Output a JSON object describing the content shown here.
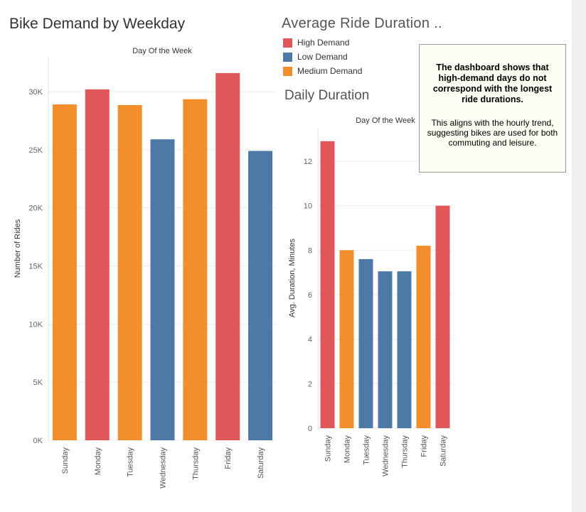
{
  "titles": {
    "demand": "Bike Demand by Weekday",
    "duration_header": "Average Ride Duration ..",
    "duration": "Daily Duration"
  },
  "legend": [
    {
      "label": "High Demand",
      "color": "#e15759"
    },
    {
      "label": "Low Demand",
      "color": "#4e79a7"
    },
    {
      "label": "Medium Demand",
      "color": "#f28e2b"
    }
  ],
  "note": {
    "bold": "The dashboard shows that high-demand days do not correspond with the longest ride durations.",
    "plain": "This aligns with the hourly trend, suggesting bikes are used for both commuting and leisure."
  },
  "chart_data": [
    {
      "type": "bar",
      "title": "Bike Demand by Weekday",
      "column_header": "Day Of the Week",
      "ylabel": "Number of Rides",
      "ylim": [
        0,
        33000
      ],
      "yticks": [
        0,
        5000,
        10000,
        15000,
        20000,
        25000,
        30000
      ],
      "ytick_labels": [
        "0K",
        "5K",
        "10K",
        "15K",
        "20K",
        "25K",
        "30K"
      ],
      "categories": [
        "Sunday",
        "Monday",
        "Tuesday",
        "Wednesday",
        "Thursday",
        "Friday",
        "Saturday"
      ],
      "values": [
        28900,
        30200,
        28850,
        25900,
        29350,
        31600,
        24900
      ],
      "demand": [
        "Medium Demand",
        "High Demand",
        "Medium Demand",
        "Low Demand",
        "Medium Demand",
        "High Demand",
        "Low Demand"
      ],
      "grid": true
    },
    {
      "type": "bar",
      "title": "Daily Duration",
      "column_header": "Day Of the Week",
      "ylabel": "Avg. Duration, Minutes",
      "ylim": [
        0,
        13.5
      ],
      "yticks": [
        0,
        2,
        4,
        6,
        8,
        10,
        12
      ],
      "ytick_labels": [
        "0",
        "2",
        "4",
        "6",
        "8",
        "10",
        "12"
      ],
      "categories": [
        "Sunday",
        "Monday",
        "Tuesday",
        "Wednesday",
        "Thursday",
        "Friday",
        "Saturday"
      ],
      "values": [
        12.9,
        8.0,
        7.6,
        7.05,
        7.05,
        8.2,
        10.0
      ],
      "demand": [
        "High Demand",
        "Medium Demand",
        "Low Demand",
        "Low Demand",
        "Low Demand",
        "Medium Demand",
        "High Demand"
      ],
      "grid": true
    }
  ]
}
